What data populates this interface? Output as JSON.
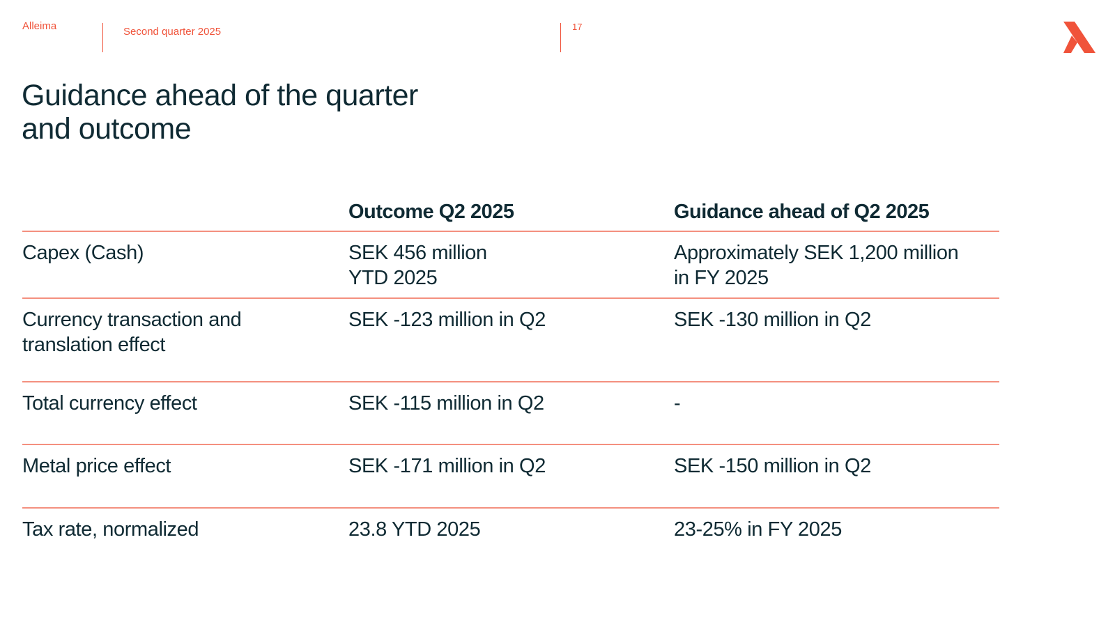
{
  "header": {
    "brand": "Alleima",
    "subtitle": "Second quarter 2025",
    "page_number": "17",
    "logo_icon": "alleima-logo-icon",
    "accent_color": "#f0533a"
  },
  "title": {
    "line1": "Guidance ahead of the quarter",
    "line2": "and outcome"
  },
  "table": {
    "columns": [
      "",
      "Outcome Q2 2025",
      "Guidance ahead of Q2 2025"
    ],
    "rows": [
      {
        "label": [
          "Capex (Cash)"
        ],
        "outcome": [
          "SEK 456 million",
          "YTD 2025"
        ],
        "guidance": [
          "Approximately SEK 1,200 million",
          "in FY 2025"
        ]
      },
      {
        "label": [
          "Currency transaction and",
          "translation effect"
        ],
        "outcome": [
          "SEK -123 million in Q2"
        ],
        "guidance": [
          "SEK -130 million in Q2"
        ]
      },
      {
        "label": [
          "Total currency effect"
        ],
        "outcome": [
          "SEK -115 million in Q2"
        ],
        "guidance": [
          "-"
        ]
      },
      {
        "label": [
          "Metal price effect"
        ],
        "outcome": [
          "SEK -171 million in Q2"
        ],
        "guidance": [
          "SEK -150 million in Q2"
        ]
      },
      {
        "label": [
          "Tax rate, normalized"
        ],
        "outcome": [
          "23.8 YTD 2025"
        ],
        "guidance": [
          "23-25% in FY 2025"
        ]
      }
    ]
  }
}
